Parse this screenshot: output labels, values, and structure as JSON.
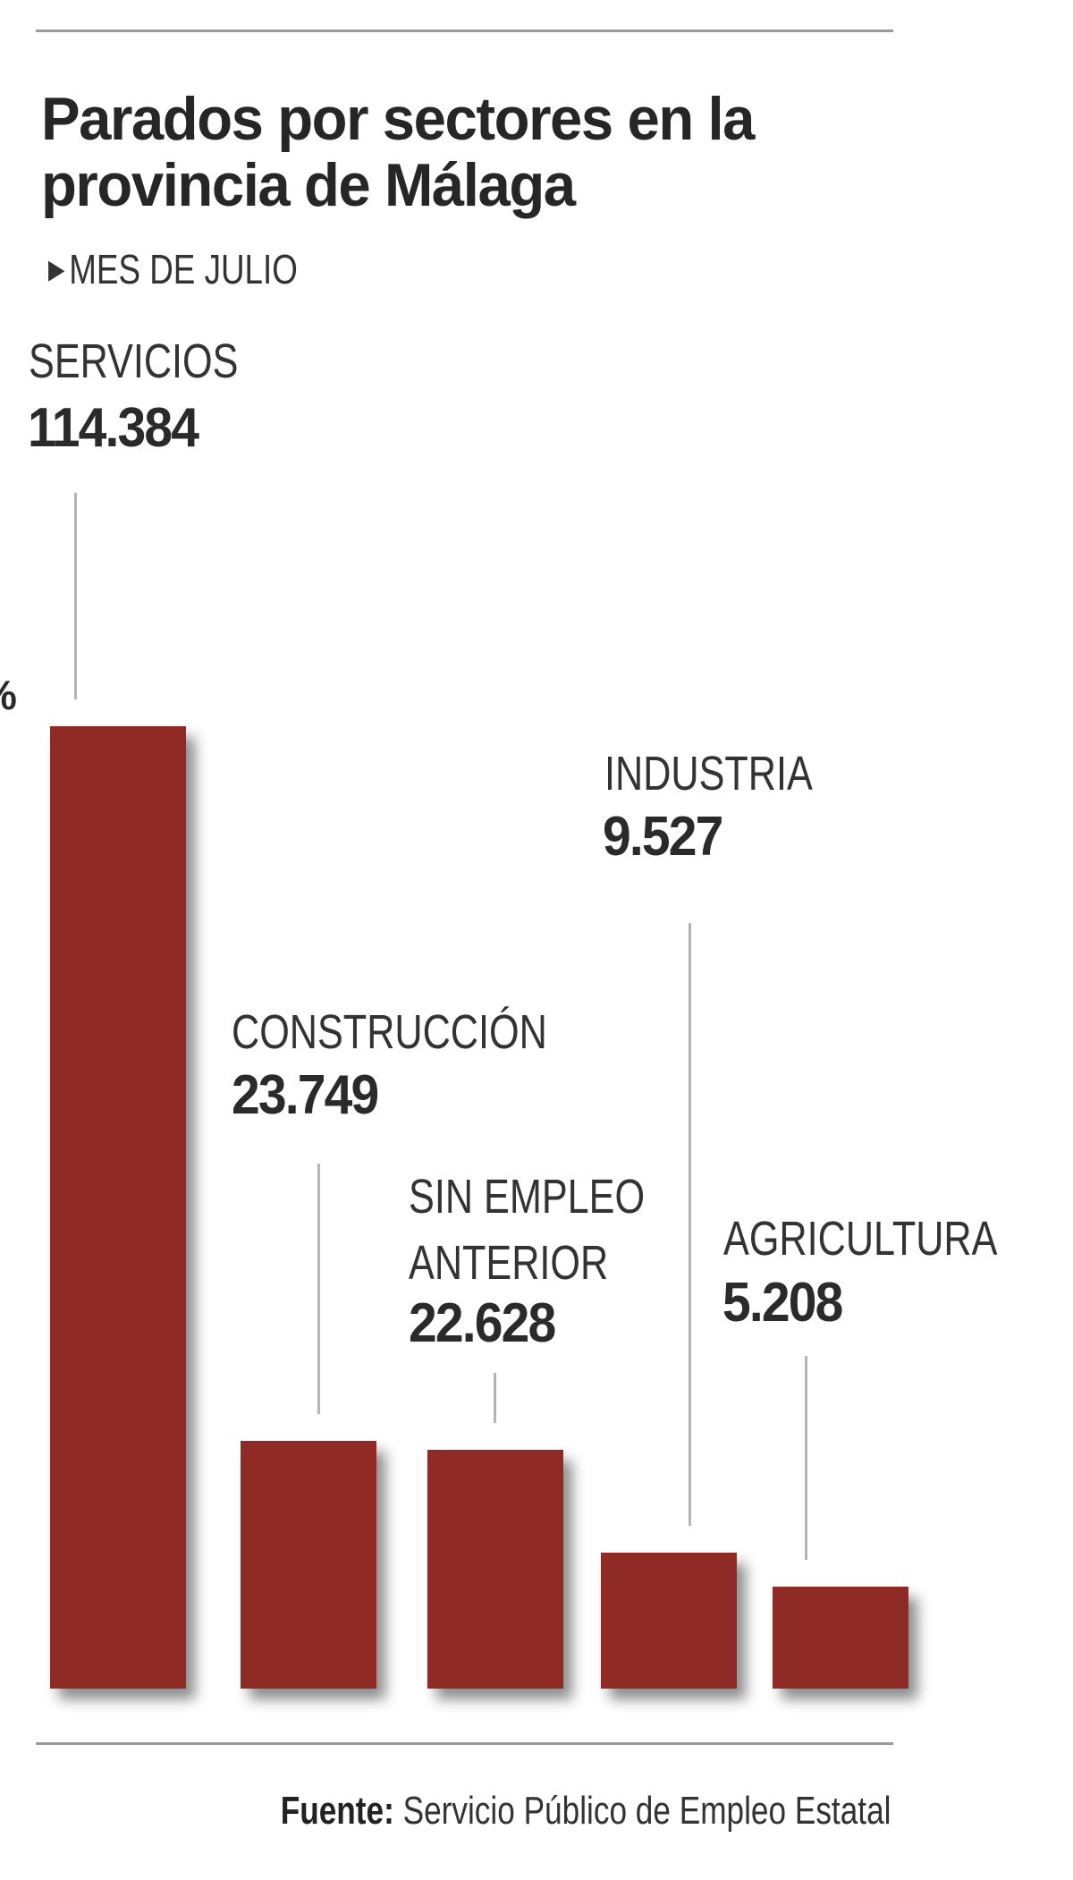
{
  "chart_data": {
    "type": "bar",
    "title": "Parados por sectores en la provincia de Málaga",
    "title_lines": [
      "Parados por sectores en la",
      "provincia de Málaga"
    ],
    "subtitle": "MES DE JULIO",
    "categories": [
      "SERVICIOS",
      "CONSTRUCCIÓN",
      "SIN EMPLEO ANTERIOR",
      "INDUSTRIA",
      "AGRICULTURA"
    ],
    "category_lines": [
      [
        "SERVICIOS"
      ],
      [
        "CONSTRUCCIÓN"
      ],
      [
        "SIN EMPLEO",
        "ANTERIOR"
      ],
      [
        "INDUSTRIA"
      ],
      [
        "AGRICULTURA"
      ]
    ],
    "values": [
      114384,
      23749,
      22628,
      9527,
      5208
    ],
    "value_labels": [
      "114.384",
      "23.749",
      "22.628",
      "9.527",
      "5.208"
    ],
    "xlabel": "",
    "ylabel": "",
    "grid": false,
    "bar_color": "#8f2a25",
    "cropped_mark": "%",
    "source_label": "Fuente:",
    "source_text": "Servicio Público de Empleo Estatal"
  }
}
